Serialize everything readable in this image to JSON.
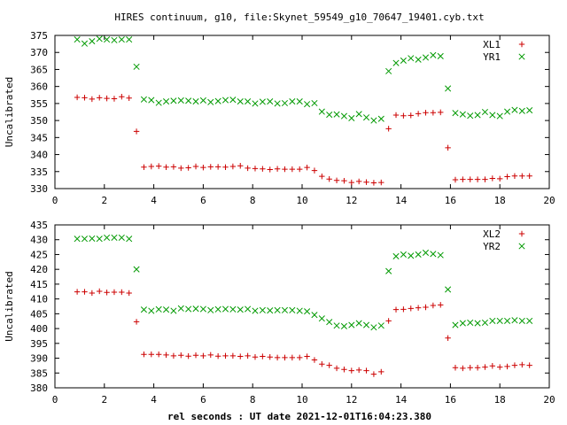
{
  "title": "HIRES continuum, g10, file:Skynet_59549_g10_70647_19401.cyb.txt",
  "xlabel": "rel seconds : UT date 2021-12-01T16:04:23.380",
  "colors": {
    "XL": "#cc0000",
    "YR": "#009900",
    "frame": "#000000"
  },
  "chart_data": [
    {
      "type": "scatter",
      "ylabel": "Uncalibrated",
      "xlim": [
        0,
        20
      ],
      "ylim": [
        330,
        375
      ],
      "xticks": [
        0,
        2,
        4,
        6,
        8,
        10,
        12,
        14,
        16,
        18,
        20
      ],
      "yticks": [
        330,
        335,
        340,
        345,
        350,
        355,
        360,
        365,
        370,
        375
      ],
      "grid": false,
      "legend_position": "top-right",
      "series": [
        {
          "name": "XL1",
          "marker": "plus",
          "color": "#cc0000",
          "x": [
            0.9,
            1.2,
            1.5,
            1.8,
            2.1,
            2.4,
            2.7,
            3.0,
            3.3,
            3.6,
            3.9,
            4.2,
            4.5,
            4.8,
            5.1,
            5.4,
            5.7,
            6.0,
            6.3,
            6.6,
            6.9,
            7.2,
            7.5,
            7.8,
            8.1,
            8.4,
            8.7,
            9.0,
            9.3,
            9.6,
            9.9,
            10.2,
            10.5,
            10.8,
            11.1,
            11.4,
            11.7,
            12.0,
            12.3,
            12.6,
            12.9,
            13.2,
            13.5,
            13.8,
            14.1,
            14.4,
            14.7,
            15.0,
            15.3,
            15.6,
            15.9,
            16.2,
            16.5,
            16.8,
            17.1,
            17.4,
            17.7,
            18.0,
            18.3,
            18.6,
            18.9,
            19.2
          ],
          "y": [
            356.8,
            356.7,
            356.3,
            356.7,
            356.5,
            356.4,
            357.0,
            356.6,
            346.8,
            336.3,
            336.5,
            336.6,
            336.3,
            336.4,
            336.0,
            336.1,
            336.5,
            336.2,
            336.4,
            336.4,
            336.3,
            336.5,
            336.7,
            336.0,
            335.9,
            335.8,
            335.6,
            335.8,
            335.7,
            335.7,
            335.7,
            336.2,
            335.3,
            333.6,
            332.8,
            332.4,
            332.3,
            331.8,
            332.1,
            331.9,
            331.7,
            331.8,
            347.6,
            351.6,
            351.4,
            351.5,
            352.0,
            352.3,
            352.3,
            352.4,
            342.0,
            332.6,
            332.7,
            332.7,
            332.7,
            332.7,
            333.0,
            332.9,
            333.5,
            333.7,
            333.7,
            333.7
          ]
        },
        {
          "name": "YR1",
          "marker": "cross",
          "color": "#009900",
          "x": [
            0.9,
            1.2,
            1.5,
            1.8,
            2.1,
            2.4,
            2.7,
            3.0,
            3.3,
            3.6,
            3.9,
            4.2,
            4.5,
            4.8,
            5.1,
            5.4,
            5.7,
            6.0,
            6.3,
            6.6,
            6.9,
            7.2,
            7.5,
            7.8,
            8.1,
            8.4,
            8.7,
            9.0,
            9.3,
            9.6,
            9.9,
            10.2,
            10.5,
            10.8,
            11.1,
            11.4,
            11.7,
            12.0,
            12.3,
            12.6,
            12.9,
            13.2,
            13.5,
            13.8,
            14.1,
            14.4,
            14.7,
            15.0,
            15.3,
            15.6,
            15.9,
            16.2,
            16.5,
            16.8,
            17.1,
            17.4,
            17.7,
            18.0,
            18.3,
            18.6,
            18.9,
            19.2
          ],
          "y": [
            373.8,
            372.6,
            373.3,
            374.0,
            373.8,
            373.6,
            373.8,
            373.8,
            365.8,
            356.2,
            356.0,
            355.2,
            355.6,
            355.8,
            355.9,
            355.8,
            355.6,
            355.9,
            355.4,
            355.7,
            356.0,
            356.1,
            355.6,
            355.6,
            355.0,
            355.5,
            355.6,
            355.0,
            355.1,
            355.6,
            355.6,
            354.8,
            355.1,
            352.6,
            351.7,
            351.8,
            351.3,
            350.7,
            351.9,
            350.9,
            350.0,
            350.5,
            364.5,
            366.9,
            367.6,
            368.3,
            367.9,
            368.5,
            369.2,
            368.9,
            359.4,
            352.2,
            351.8,
            351.4,
            351.6,
            352.5,
            351.6,
            351.3,
            352.6,
            353.1,
            352.8,
            353.0
          ]
        }
      ]
    },
    {
      "type": "scatter",
      "ylabel": "Uncalibrated",
      "xlim": [
        0,
        20
      ],
      "ylim": [
        380,
        435
      ],
      "xticks": [
        0,
        2,
        4,
        6,
        8,
        10,
        12,
        14,
        16,
        18,
        20
      ],
      "yticks": [
        380,
        385,
        390,
        395,
        400,
        405,
        410,
        415,
        420,
        425,
        430,
        435
      ],
      "grid": false,
      "legend_position": "top-right",
      "series": [
        {
          "name": "XL2",
          "marker": "plus",
          "color": "#cc0000",
          "x": [
            0.9,
            1.2,
            1.5,
            1.8,
            2.1,
            2.4,
            2.7,
            3.0,
            3.3,
            3.6,
            3.9,
            4.2,
            4.5,
            4.8,
            5.1,
            5.4,
            5.7,
            6.0,
            6.3,
            6.6,
            6.9,
            7.2,
            7.5,
            7.8,
            8.1,
            8.4,
            8.7,
            9.0,
            9.3,
            9.6,
            9.9,
            10.2,
            10.5,
            10.8,
            11.1,
            11.4,
            11.7,
            12.0,
            12.3,
            12.6,
            12.9,
            13.2,
            13.5,
            13.8,
            14.1,
            14.4,
            14.7,
            15.0,
            15.3,
            15.6,
            15.9,
            16.2,
            16.5,
            16.8,
            17.1,
            17.4,
            17.7,
            18.0,
            18.3,
            18.6,
            18.9,
            19.2
          ],
          "y": [
            412.4,
            412.4,
            412.0,
            412.6,
            412.2,
            412.3,
            412.3,
            412.0,
            402.3,
            391.3,
            391.3,
            391.3,
            391.1,
            390.8,
            391.0,
            390.7,
            391.0,
            390.8,
            391.1,
            390.7,
            390.8,
            390.8,
            390.6,
            390.8,
            390.4,
            390.6,
            390.4,
            390.2,
            390.2,
            390.2,
            390.2,
            390.6,
            389.4,
            388.0,
            387.6,
            386.6,
            386.2,
            385.8,
            386.0,
            385.8,
            384.6,
            385.4,
            402.6,
            406.4,
            406.5,
            406.8,
            407.0,
            407.2,
            407.8,
            408.0,
            396.8,
            386.8,
            386.6,
            386.8,
            386.8,
            387.0,
            387.4,
            387.0,
            387.2,
            387.6,
            387.8,
            387.6
          ]
        },
        {
          "name": "YR2",
          "marker": "cross",
          "color": "#009900",
          "x": [
            0.9,
            1.2,
            1.5,
            1.8,
            2.1,
            2.4,
            2.7,
            3.0,
            3.3,
            3.6,
            3.9,
            4.2,
            4.5,
            4.8,
            5.1,
            5.4,
            5.7,
            6.0,
            6.3,
            6.6,
            6.9,
            7.2,
            7.5,
            7.8,
            8.1,
            8.4,
            8.7,
            9.0,
            9.3,
            9.6,
            9.9,
            10.2,
            10.5,
            10.8,
            11.1,
            11.4,
            11.7,
            12.0,
            12.3,
            12.6,
            12.9,
            13.2,
            13.5,
            13.8,
            14.1,
            14.4,
            14.7,
            15.0,
            15.3,
            15.6,
            15.9,
            16.2,
            16.5,
            16.8,
            17.1,
            17.4,
            17.7,
            18.0,
            18.3,
            18.6,
            18.9,
            19.2
          ],
          "y": [
            430.3,
            430.3,
            430.4,
            430.3,
            430.7,
            430.7,
            430.7,
            430.3,
            420.0,
            406.4,
            406.0,
            406.5,
            406.4,
            406.0,
            406.8,
            406.6,
            406.7,
            406.6,
            406.2,
            406.5,
            406.6,
            406.5,
            406.4,
            406.6,
            406.0,
            406.2,
            406.1,
            406.2,
            406.2,
            406.2,
            406.0,
            405.8,
            404.6,
            403.4,
            402.2,
            401.0,
            400.8,
            401.2,
            401.8,
            401.2,
            400.4,
            401.0,
            419.4,
            424.4,
            425.0,
            424.6,
            425.0,
            425.6,
            425.2,
            424.8,
            413.2,
            401.2,
            401.8,
            402.0,
            401.8,
            402.0,
            402.6,
            402.6,
            402.6,
            402.8,
            402.6,
            402.6
          ]
        }
      ]
    }
  ]
}
